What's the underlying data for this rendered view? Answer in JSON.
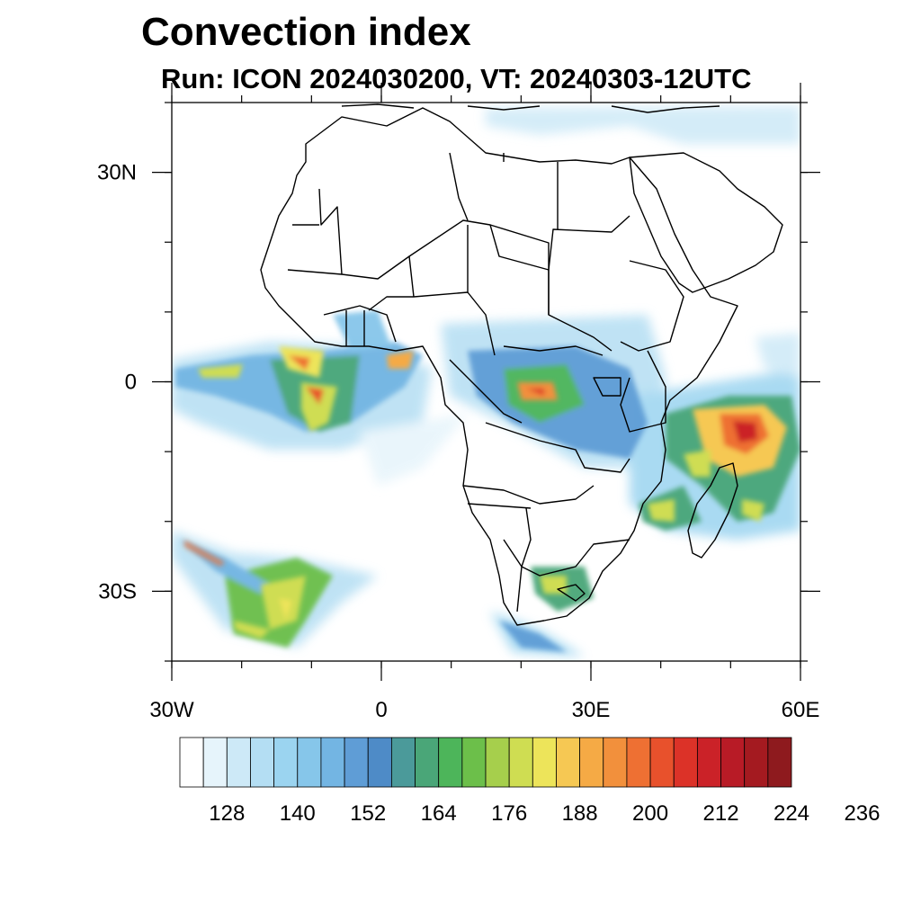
{
  "title": "Convection index",
  "subtitle": "Run: ICON 2024030200,  VT: 20240303-12UTC",
  "map": {
    "lon_range": [
      -30,
      60
    ],
    "lat_range": [
      -40,
      40
    ],
    "x_ticks": [
      {
        "lon": -30,
        "label": "30W"
      },
      {
        "lon": 0,
        "label": "0"
      },
      {
        "lon": 30,
        "label": "30E"
      },
      {
        "lon": 60,
        "label": "60E"
      }
    ],
    "y_ticks": [
      {
        "lat": 30,
        "label": "30N"
      },
      {
        "lat": 0,
        "label": "0"
      },
      {
        "lat": -30,
        "label": "30S"
      }
    ]
  },
  "colorbar": {
    "colors": [
      "#ffffff",
      "#e6f4fb",
      "#cde9f7",
      "#b4def3",
      "#9bd4f0",
      "#86c6ea",
      "#73b5e3",
      "#5f9dd6",
      "#4e8bc7",
      "#4b9a9a",
      "#4aa678",
      "#4db55a",
      "#6cbf4a",
      "#a6cf4c",
      "#cfdd52",
      "#ede45a",
      "#f6c853",
      "#f5aa45",
      "#f2903c",
      "#ee7033",
      "#e8512c",
      "#dc3228",
      "#cb2228",
      "#b81b26",
      "#a41a20",
      "#8e1a1e"
    ],
    "labels": [
      "128",
      "140",
      "152",
      "164",
      "176",
      "188",
      "200",
      "212",
      "224",
      "236"
    ]
  }
}
